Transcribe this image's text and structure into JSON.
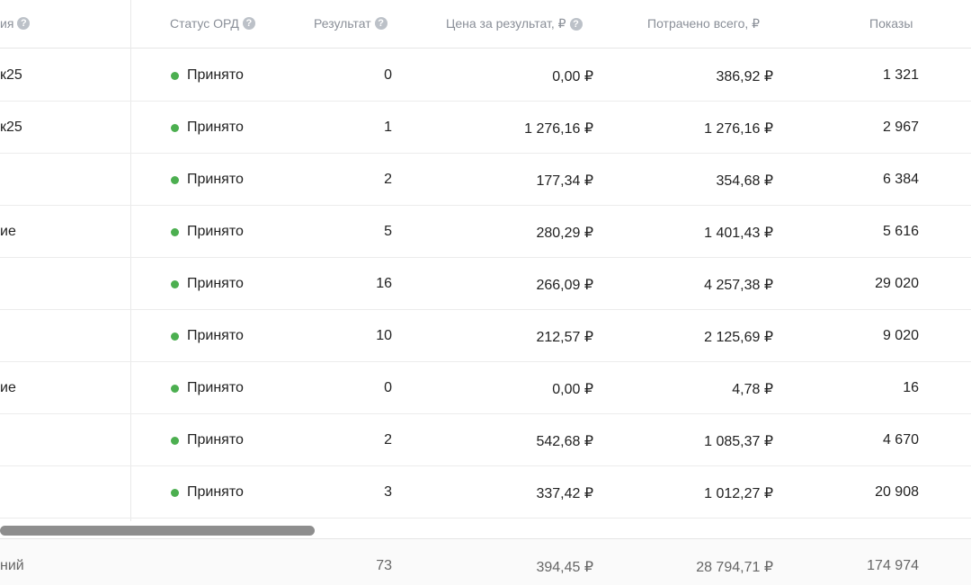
{
  "header": {
    "name_label": "ия",
    "ord_status": "Статус ОРД",
    "result": "Результат",
    "price_per_result": "Цена за результат, ₽",
    "spent_total": "Потрачено всего, ₽",
    "impressions": "Показы",
    "help_glyph": "?"
  },
  "rows": [
    {
      "name": "к25",
      "status": "Принято",
      "result": "0",
      "price": "0,00 ₽",
      "spent": "386,92 ₽",
      "shows": "1 321"
    },
    {
      "name": "к25",
      "status": "Принято",
      "result": "1",
      "price": "1 276,16 ₽",
      "spent": "1 276,16 ₽",
      "shows": "2 967"
    },
    {
      "name": "",
      "status": "Принято",
      "result": "2",
      "price": "177,34 ₽",
      "spent": "354,68 ₽",
      "shows": "6 384"
    },
    {
      "name": "ие",
      "status": "Принято",
      "result": "5",
      "price": "280,29 ₽",
      "spent": "1 401,43 ₽",
      "shows": "5 616"
    },
    {
      "name": "",
      "status": "Принято",
      "result": "16",
      "price": "266,09 ₽",
      "spent": "4 257,38 ₽",
      "shows": "29 020"
    },
    {
      "name": "",
      "status": "Принято",
      "result": "10",
      "price": "212,57 ₽",
      "spent": "2 125,69 ₽",
      "shows": "9 020"
    },
    {
      "name": "ие",
      "status": "Принято",
      "result": "0",
      "price": "0,00 ₽",
      "spent": "4,78 ₽",
      "shows": "16"
    },
    {
      "name": "",
      "status": "Принято",
      "result": "2",
      "price": "542,68 ₽",
      "spent": "1 085,37 ₽",
      "shows": "4 670"
    },
    {
      "name": "",
      "status": "Принято",
      "result": "3",
      "price": "337,42 ₽",
      "spent": "1 012,27 ₽",
      "shows": "20 908"
    }
  ],
  "footer": {
    "label": "ний",
    "result": "73",
    "price": "394,45 ₽",
    "spent": "28 794,71 ₽",
    "shows": "174 974"
  },
  "colors": {
    "status_ok": "#4caf50",
    "header_text": "#8a8f98",
    "scrollbar": "#8e8e8e"
  }
}
